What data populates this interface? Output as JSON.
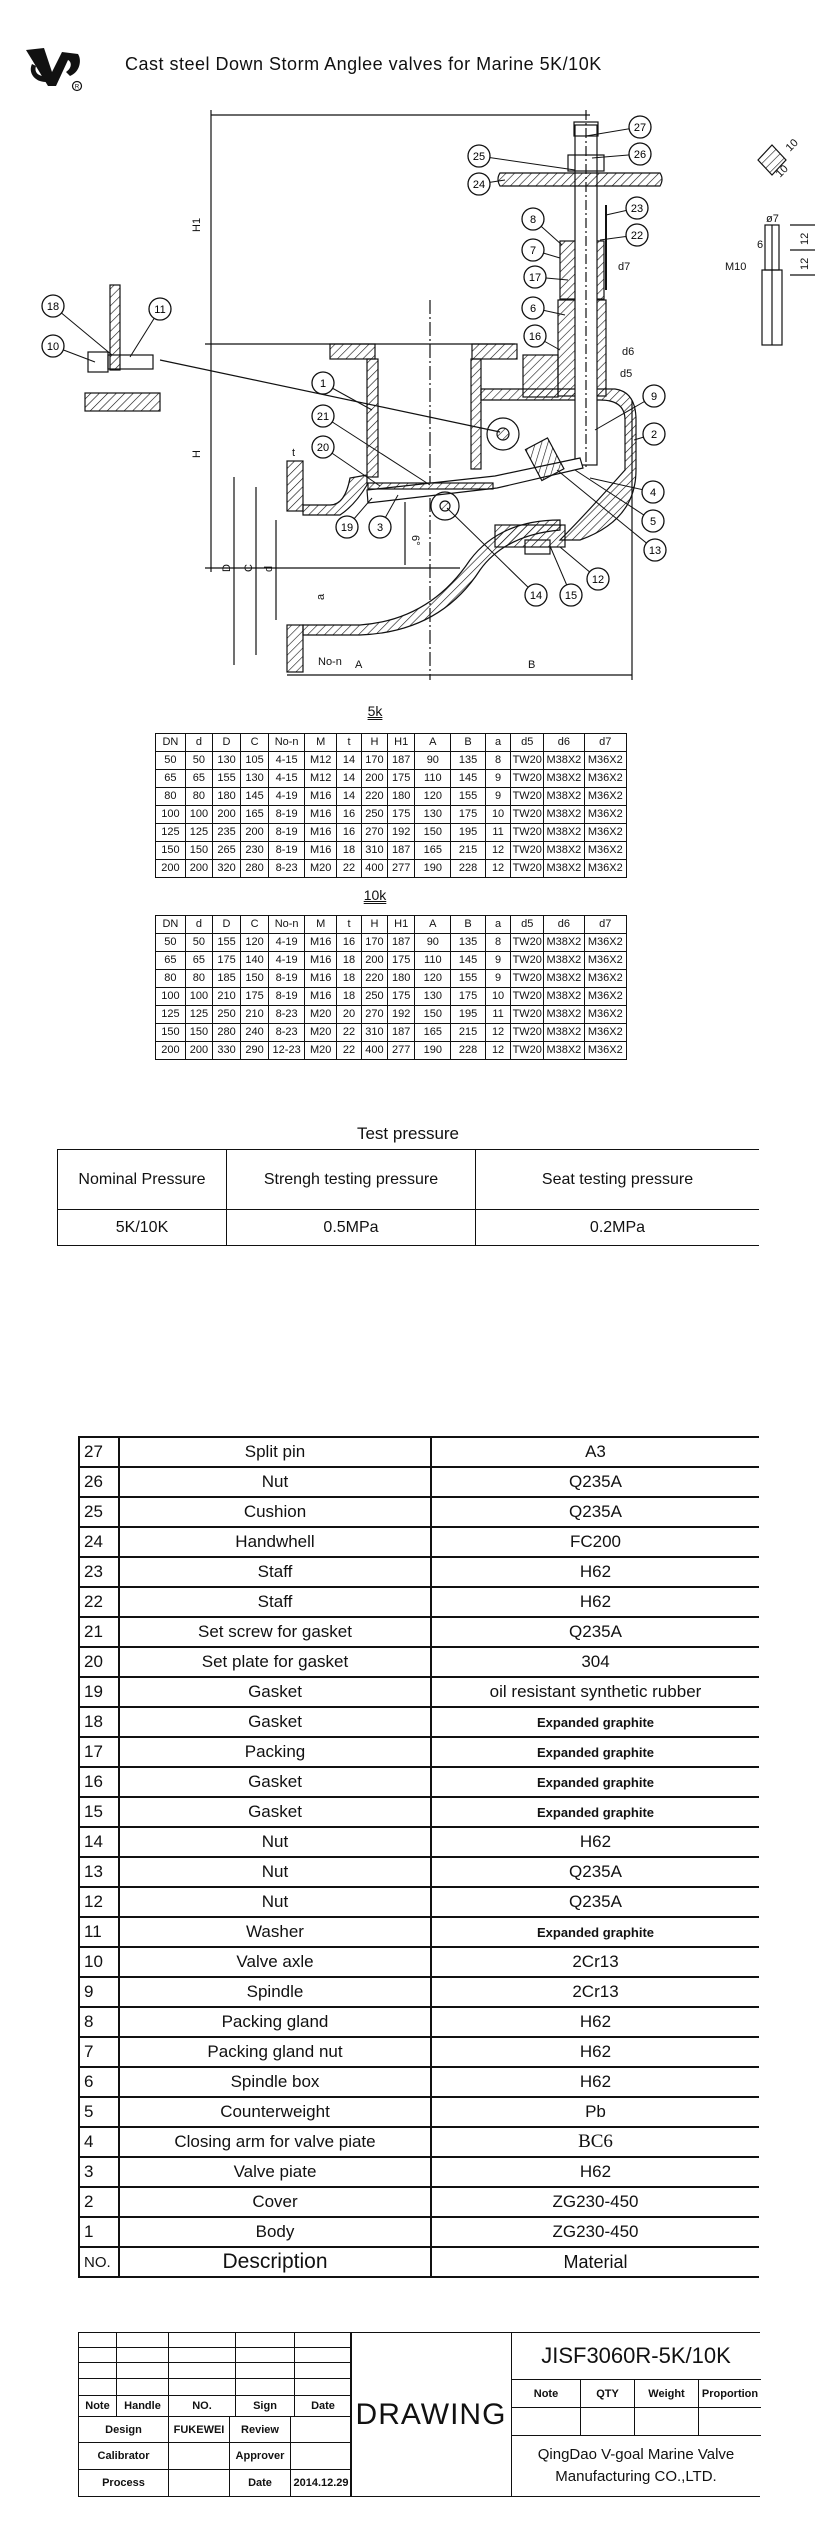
{
  "header": {
    "title": "Cast steel Down Storm Anglee valves for Marine 5K/10K",
    "logo_text": "VG"
  },
  "drawing": {
    "callouts": [
      "27",
      "26",
      "25",
      "24",
      "23",
      "22",
      "8",
      "7",
      "17",
      "6",
      "16",
      "9",
      "2",
      "4",
      "5",
      "13",
      "12",
      "15",
      "14",
      "1",
      "21",
      "20",
      "19",
      "3",
      "18",
      "11",
      "10"
    ],
    "labels": {
      "H1": "H1",
      "H": "H",
      "D": "D",
      "C": "C",
      "d": "d",
      "a": "a",
      "t": "t",
      "non": "No-n",
      "A": "A",
      "B": "B",
      "d5": "d5",
      "d6": "d6",
      "d7": "d7",
      "phi7": "ø7",
      "M10": "M10",
      "six": "6",
      "twelve_a": "12",
      "twelve_b": "12",
      "ten_a": "10",
      "ten_b": "10",
      "angle": "6°"
    }
  },
  "table_5k": {
    "label": "5k",
    "headers": [
      "DN",
      "d",
      "D",
      "C",
      "No-n",
      "M",
      "t",
      "H",
      "H1",
      "A",
      "B",
      "a",
      "d5",
      "d6",
      "d7"
    ],
    "rows": [
      [
        "50",
        "50",
        "130",
        "105",
        "4-15",
        "M12",
        "14",
        "170",
        "187",
        "90",
        "135",
        "8",
        "TW20",
        "M38X2",
        "M36X2"
      ],
      [
        "65",
        "65",
        "155",
        "130",
        "4-15",
        "M12",
        "14",
        "200",
        "175",
        "110",
        "145",
        "9",
        "TW20",
        "M38X2",
        "M36X2"
      ],
      [
        "80",
        "80",
        "180",
        "145",
        "4-19",
        "M16",
        "14",
        "220",
        "180",
        "120",
        "155",
        "9",
        "TW20",
        "M38X2",
        "M36X2"
      ],
      [
        "100",
        "100",
        "200",
        "165",
        "8-19",
        "M16",
        "16",
        "250",
        "175",
        "130",
        "175",
        "10",
        "TW20",
        "M38X2",
        "M36X2"
      ],
      [
        "125",
        "125",
        "235",
        "200",
        "8-19",
        "M16",
        "16",
        "270",
        "192",
        "150",
        "195",
        "11",
        "TW20",
        "M38X2",
        "M36X2"
      ],
      [
        "150",
        "150",
        "265",
        "230",
        "8-19",
        "M16",
        "18",
        "310",
        "187",
        "165",
        "215",
        "12",
        "TW20",
        "M38X2",
        "M36X2"
      ],
      [
        "200",
        "200",
        "320",
        "280",
        "8-23",
        "M20",
        "22",
        "400",
        "277",
        "190",
        "228",
        "12",
        "TW20",
        "M38X2",
        "M36X2"
      ]
    ]
  },
  "table_10k": {
    "label": "10k",
    "headers": [
      "DN",
      "d",
      "D",
      "C",
      "No-n",
      "M",
      "t",
      "H",
      "H1",
      "A",
      "B",
      "a",
      "d5",
      "d6",
      "d7"
    ],
    "rows": [
      [
        "50",
        "50",
        "155",
        "120",
        "4-19",
        "M16",
        "16",
        "170",
        "187",
        "90",
        "135",
        "8",
        "TW20",
        "M38X2",
        "M36X2"
      ],
      [
        "65",
        "65",
        "175",
        "140",
        "4-19",
        "M16",
        "18",
        "200",
        "175",
        "110",
        "145",
        "9",
        "TW20",
        "M38X2",
        "M36X2"
      ],
      [
        "80",
        "80",
        "185",
        "150",
        "8-19",
        "M16",
        "18",
        "220",
        "180",
        "120",
        "155",
        "9",
        "TW20",
        "M38X2",
        "M36X2"
      ],
      [
        "100",
        "100",
        "210",
        "175",
        "8-19",
        "M16",
        "18",
        "250",
        "175",
        "130",
        "175",
        "10",
        "TW20",
        "M38X2",
        "M36X2"
      ],
      [
        "125",
        "125",
        "250",
        "210",
        "8-23",
        "M20",
        "20",
        "270",
        "192",
        "150",
        "195",
        "11",
        "TW20",
        "M38X2",
        "M36X2"
      ],
      [
        "150",
        "150",
        "280",
        "240",
        "8-23",
        "M20",
        "22",
        "310",
        "187",
        "165",
        "215",
        "12",
        "TW20",
        "M38X2",
        "M36X2"
      ],
      [
        "200",
        "200",
        "330",
        "290",
        "12-23",
        "M20",
        "22",
        "400",
        "277",
        "190",
        "228",
        "12",
        "TW20",
        "M38X2",
        "M36X2"
      ]
    ]
  },
  "test_pressure": {
    "title": "Test pressure",
    "headers": [
      "Nominal Pressure",
      "Strengh testing pressure",
      "Seat testing pressure"
    ],
    "row": [
      "5K/10K",
      "0.5MPa",
      "0.2MPa"
    ]
  },
  "parts": {
    "rows": [
      {
        "no": "27",
        "desc": "Split pin",
        "mat": "A3"
      },
      {
        "no": "26",
        "desc": "Nut",
        "mat": "Q235A"
      },
      {
        "no": "25",
        "desc": "Cushion",
        "mat": "Q235A"
      },
      {
        "no": "24",
        "desc": "Handwhell",
        "mat": "FC200"
      },
      {
        "no": "23",
        "desc": "Staff",
        "mat": "H62"
      },
      {
        "no": "22",
        "desc": "Staff",
        "mat": "H62"
      },
      {
        "no": "21",
        "desc": "Set screw for gasket",
        "mat": "Q235A"
      },
      {
        "no": "20",
        "desc": "Set plate for gasket",
        "mat": "304"
      },
      {
        "no": "19",
        "desc": "Gasket",
        "mat": "oil resistant synthetic rubber"
      },
      {
        "no": "18",
        "desc": "Gasket",
        "mat": "Expanded graphite"
      },
      {
        "no": "17",
        "desc": "Packing",
        "mat": "Expanded graphite"
      },
      {
        "no": "16",
        "desc": "Gasket",
        "mat": "Expanded graphite"
      },
      {
        "no": "15",
        "desc": "Gasket",
        "mat": "Expanded graphite"
      },
      {
        "no": "14",
        "desc": "Nut",
        "mat": "H62"
      },
      {
        "no": "13",
        "desc": "Nut",
        "mat": "Q235A"
      },
      {
        "no": "12",
        "desc": "Nut",
        "mat": "Q235A"
      },
      {
        "no": "11",
        "desc": "Washer",
        "mat": "Expanded graphite"
      },
      {
        "no": "10",
        "desc": "Valve axle",
        "mat": "2Cr13"
      },
      {
        "no": "9",
        "desc": "Spindle",
        "mat": "2Cr13"
      },
      {
        "no": "8",
        "desc": "Packing gland",
        "mat": "H62"
      },
      {
        "no": "7",
        "desc": "Packing gland nut",
        "mat": "H62"
      },
      {
        "no": "6",
        "desc": "Spindle box",
        "mat": "H62"
      },
      {
        "no": "5",
        "desc": "Counterweight",
        "mat": "Pb"
      },
      {
        "no": "4",
        "desc": "Closing arm for valve piate",
        "mat": "BC6"
      },
      {
        "no": "3",
        "desc": "Valve piate",
        "mat": "H62"
      },
      {
        "no": "2",
        "desc": "Cover",
        "mat": "ZG230-450"
      },
      {
        "no": "1",
        "desc": "Body",
        "mat": "ZG230-450"
      }
    ],
    "header": {
      "no": "NO.",
      "desc": "Description",
      "mat": "Material"
    }
  },
  "title_block": {
    "note": "Note",
    "handle": "Handle",
    "no": "NO.",
    "sign": "Sign",
    "date": "Date",
    "design": "Design",
    "designer": "FUKEWEI",
    "review": "Review",
    "calibrator": "Calibrator",
    "approver": "Approver",
    "process": "Process",
    "date_label": "Date",
    "date_value": "2014.12.29",
    "drawing": "DRAWING",
    "model": "JISF3060R-5K/10K",
    "qty_headers": [
      "Note",
      "QTY",
      "Weight",
      "Proportion"
    ],
    "company_line1": "QingDao V-goal Marine Valve",
    "company_line2": "Manufacturing CO.,LTD."
  }
}
